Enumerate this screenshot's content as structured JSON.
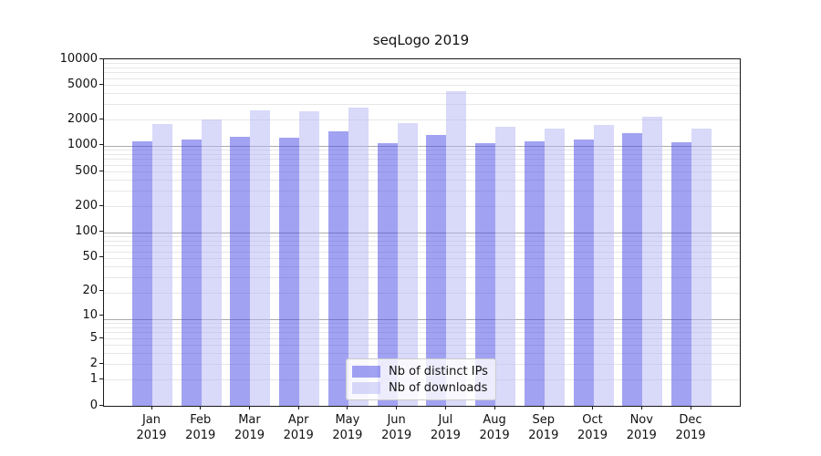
{
  "chart_data": {
    "type": "bar",
    "title": "seqLogo 2019",
    "x_categories": [
      "Jan",
      "Feb",
      "Mar",
      "Apr",
      "May",
      "Jun",
      "Jul",
      "Aug",
      "Sep",
      "Oct",
      "Nov",
      "Dec"
    ],
    "x_year": "2019",
    "y_scale": "log1p",
    "y_ticks": [
      10000,
      5000,
      2000,
      1000,
      500,
      200,
      100,
      50,
      20,
      10,
      5,
      2,
      1,
      0
    ],
    "ylim": [
      0,
      10000
    ],
    "grid": true,
    "legend_position": "lower center",
    "colors": {
      "axis": "#1a1a1a",
      "grid_major": "#ababab",
      "grid_minor": "#e7e7e7",
      "series1_hex_over_white": "#a2a2f2",
      "series2_hex_over_white": "#d9d9f9"
    },
    "series": [
      {
        "name": "Nb of distinct IPs",
        "fill": "rgba(69,69,229,0.5)",
        "values": [
          1120,
          1175,
          1275,
          1255,
          1480,
          1080,
          1330,
          1080,
          1130,
          1185,
          1400,
          1100
        ]
      },
      {
        "name": "Nb of downloads",
        "fill": "rgba(179,179,243,0.5)",
        "values": [
          1790,
          2040,
          2570,
          2520,
          2780,
          1810,
          4280,
          1660,
          1580,
          1745,
          2170,
          1580
        ]
      }
    ]
  }
}
